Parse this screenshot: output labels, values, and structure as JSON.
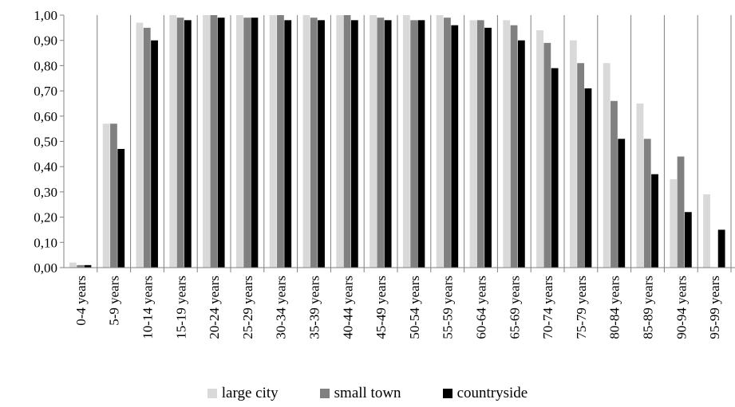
{
  "chart_data": {
    "type": "bar",
    "title": "",
    "xlabel": "",
    "ylabel": "",
    "ylim": [
      0,
      1
    ],
    "yticks": [
      "0,00",
      "0,10",
      "0,20",
      "0,30",
      "0,40",
      "0,50",
      "0,60",
      "0,70",
      "0,80",
      "0,90",
      "1,00"
    ],
    "grid": "vertical separators between categories",
    "legend_position": "bottom",
    "categories": [
      "0-4 years",
      "5-9 years",
      "10-14 years",
      "15-19 years",
      "20-24 years",
      "25-29 years",
      "30-34 years",
      "35-39 years",
      "40-44 years",
      "45-49 years",
      "50-54 years",
      "55-59 years",
      "60-64 years",
      "65-69 years",
      "70-74 years",
      "75-79 years",
      "80-84 years",
      "85-89 years",
      "90-94 years",
      "95-99 years"
    ],
    "series": [
      {
        "name": "large city",
        "color": "#d9d9d9",
        "values": [
          0.02,
          0.57,
          0.97,
          1.0,
          1.0,
          1.0,
          1.0,
          1.0,
          1.0,
          1.0,
          1.0,
          1.0,
          0.98,
          0.98,
          0.94,
          0.9,
          0.81,
          0.65,
          0.35,
          0.29
        ]
      },
      {
        "name": "small town",
        "color": "#808080",
        "values": [
          0.01,
          0.57,
          0.95,
          0.99,
          1.0,
          0.99,
          1.0,
          0.99,
          1.0,
          0.99,
          0.98,
          0.99,
          0.98,
          0.96,
          0.89,
          0.81,
          0.66,
          0.51,
          0.44,
          0.0
        ]
      },
      {
        "name": "countryside",
        "color": "#000000",
        "values": [
          0.01,
          0.47,
          0.9,
          0.98,
          0.99,
          0.99,
          0.98,
          0.98,
          0.98,
          0.98,
          0.98,
          0.96,
          0.95,
          0.9,
          0.79,
          0.71,
          0.51,
          0.37,
          0.22,
          0.15
        ]
      }
    ]
  }
}
